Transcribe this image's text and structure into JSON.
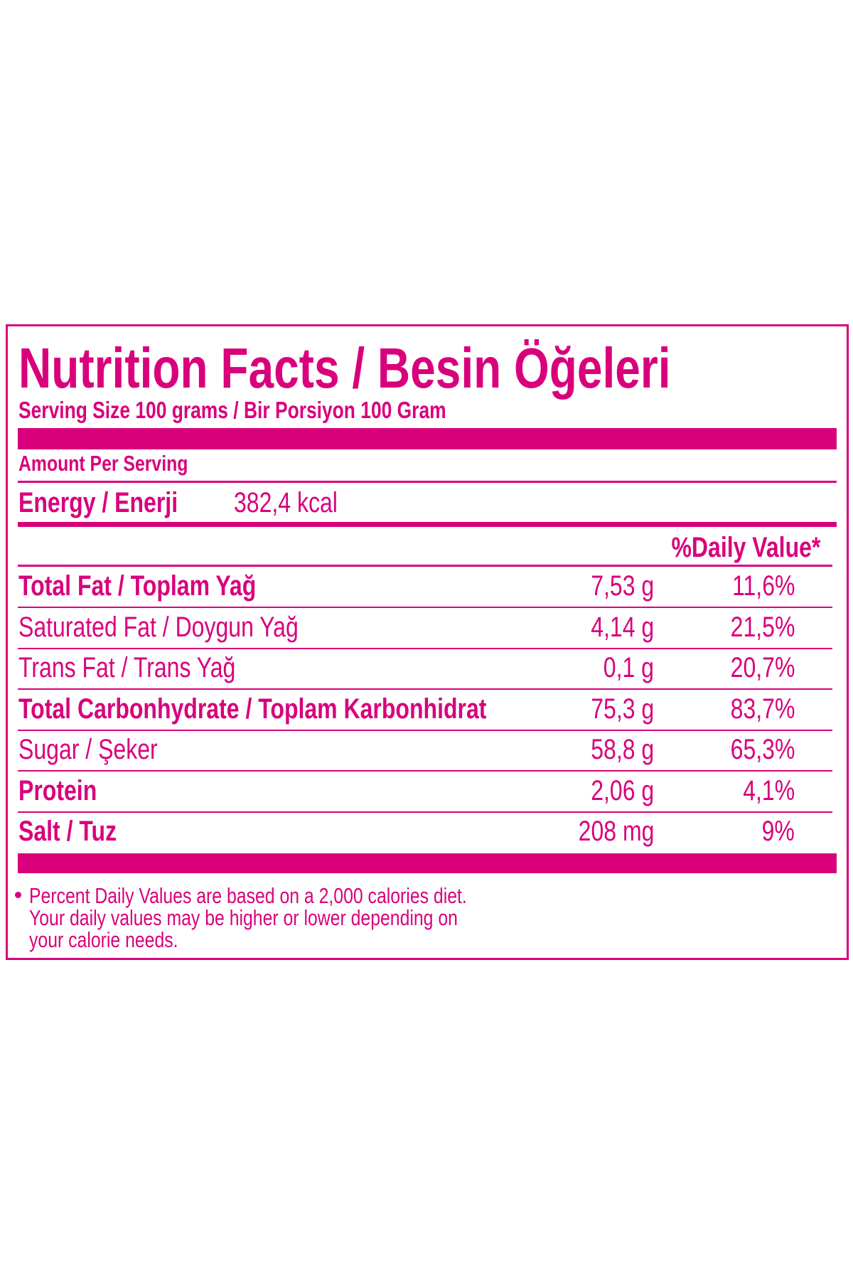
{
  "title": "Nutrition Facts / Besin Öğeleri",
  "serving": "Serving Size 100 grams / Bir Porsiyon 100 Gram",
  "amount_per_serving": "Amount Per Serving",
  "energy": {
    "label": "Energy / Enerji",
    "value": "382,4 kcal"
  },
  "daily_value_header": "%Daily Value*",
  "rows": [
    {
      "label": "Total Fat / Toplam Yağ",
      "amount": "7,53 g",
      "daily_value": "11,6%",
      "bold": true
    },
    {
      "label": "Saturated Fat / Doygun Yağ",
      "amount": "4,14 g",
      "daily_value": "21,5%",
      "bold": false
    },
    {
      "label": "Trans Fat / Trans Yağ",
      "amount": "0,1 g",
      "daily_value": "20,7%",
      "bold": false
    },
    {
      "label": "Total Carbonhydrate / Toplam Karbonhidrat",
      "amount": "75,3 g",
      "daily_value": "83,7%",
      "bold": true
    },
    {
      "label": "Sugar / Şeker",
      "amount": "58,8 g",
      "daily_value": "65,3%",
      "bold": false
    },
    {
      "label": "Protein",
      "amount": "2,06 g",
      "daily_value": "4,1%",
      "bold": true
    },
    {
      "label": "Salt / Tuz",
      "amount": "208 mg",
      "daily_value": "9%",
      "bold": true
    }
  ],
  "footnote": [
    "Percent Daily Values are based on a 2,000 calories diet.",
    "Your daily values may be higher or lower depending on",
    "your calorie needs."
  ]
}
